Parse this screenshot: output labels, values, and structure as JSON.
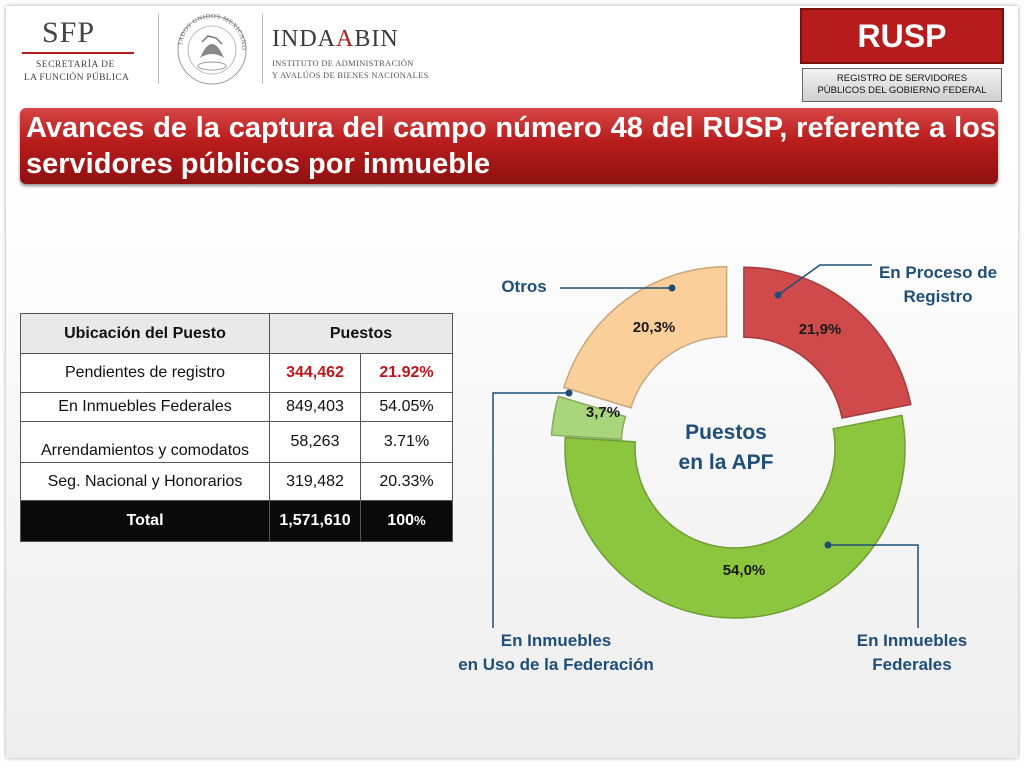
{
  "header": {
    "sfp": {
      "abbr": "SFP",
      "line1": "SECRETARÍA DE",
      "line2": "LA FUNCIÓN PÚBLICA"
    },
    "seal": {
      "text": "ESTADOS UNIDOS MEXICANOS"
    },
    "indaabin": {
      "abbr_a": "INDA",
      "abbr_b": "A",
      "abbr_c": "BIN",
      "line1": "INSTITUTO DE ADMINISTRACIÓN",
      "line2": "Y AVALÚOS DE BIENES NACIONALES"
    },
    "rusp": {
      "label": "RUSP",
      "sub1": "REGISTRO DE SERVIDORES",
      "sub2": "PÚBLICOS DEL GOBIERNO FEDERAL"
    }
  },
  "title": "Avances de la captura del campo número 48 del RUSP, referente a los servidores públicos por inmueble",
  "table": {
    "headers": [
      "Ubicación del Puesto",
      "Puestos",
      ""
    ],
    "rows": [
      {
        "label": "Pendientes de registro",
        "value": "344,462",
        "pct": "21.92%"
      },
      {
        "label": "En Inmuebles Federales",
        "value": "849,403",
        "pct": "54.05%"
      },
      {
        "label": "Arrendamientos y comodatos",
        "value": "58,263",
        "pct": "3.71%"
      },
      {
        "label": "Seg. Nacional y Honorarios",
        "value": "319,482",
        "pct": "20.33%"
      }
    ],
    "total": {
      "label": "Total",
      "value": "1,571,610",
      "pct_main": "100",
      "pct_sym": "%"
    }
  },
  "chart_data": {
    "type": "pie",
    "variant": "donut",
    "center_label": [
      "Puestos",
      "en la APF"
    ],
    "slices": [
      {
        "label_lines": [
          "En Proceso de",
          "Registro"
        ],
        "value": 21.9,
        "display": "21,9%",
        "color": "#cf4a4a",
        "exploded": true
      },
      {
        "label_lines": [
          "En Inmuebles",
          "Federales"
        ],
        "value": 54.0,
        "display": "54,0%",
        "color": "#8cc63f",
        "exploded": false
      },
      {
        "label_lines": [
          "En Inmuebles",
          "en Uso de la Federación"
        ],
        "value": 3.7,
        "display": "3,7%",
        "color": "#a9d67a",
        "exploded": true
      },
      {
        "label_lines": [
          "Otros"
        ],
        "value": 20.3,
        "display": "20,3%",
        "color": "#fbcf9a",
        "exploded": true
      }
    ]
  }
}
